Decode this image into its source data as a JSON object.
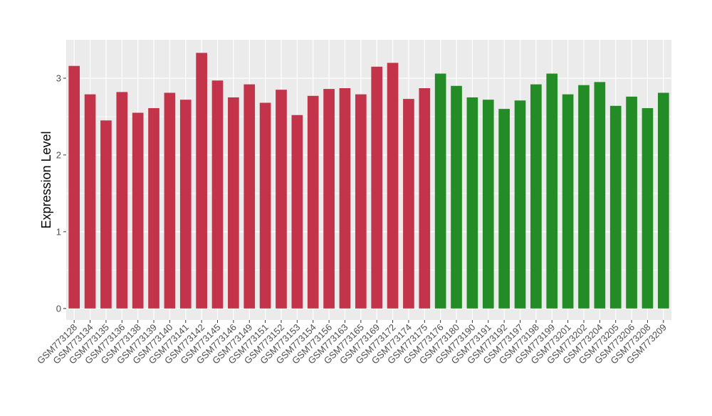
{
  "chart_data": {
    "type": "bar",
    "ylabel": "Expression Level",
    "ylim": [
      -0.15,
      3.5
    ],
    "yticks": [
      0,
      1,
      2,
      3
    ],
    "grid": true,
    "categories": [
      "GSM773128",
      "GSM773134",
      "GSM773135",
      "GSM773136",
      "GSM773138",
      "GSM773139",
      "GSM773140",
      "GSM773141",
      "GSM773142",
      "GSM773145",
      "GSM773146",
      "GSM773149",
      "GSM773151",
      "GSM773152",
      "GSM773153",
      "GSM773154",
      "GSM773156",
      "GSM773163",
      "GSM773165",
      "GSM773169",
      "GSM773172",
      "GSM773174",
      "GSM773175",
      "GSM773176",
      "GSM773180",
      "GSM773190",
      "GSM773191",
      "GSM773192",
      "GSM773197",
      "GSM773198",
      "GSM773199",
      "GSM773201",
      "GSM773202",
      "GSM773204",
      "GSM773205",
      "GSM773206",
      "GSM773208",
      "GSM773209"
    ],
    "values": [
      3.16,
      2.79,
      2.45,
      2.82,
      2.55,
      2.61,
      2.81,
      2.72,
      3.33,
      2.97,
      2.75,
      2.92,
      2.68,
      2.85,
      2.52,
      2.77,
      2.86,
      2.87,
      2.79,
      3.15,
      3.2,
      2.73,
      2.87,
      3.06,
      2.9,
      2.75,
      2.72,
      2.6,
      2.71,
      2.92,
      3.06,
      2.79,
      2.91,
      2.95,
      2.64,
      2.76,
      2.61,
      2.81
    ],
    "groups": [
      0,
      0,
      0,
      0,
      0,
      0,
      0,
      0,
      0,
      0,
      0,
      0,
      0,
      0,
      0,
      0,
      0,
      0,
      0,
      0,
      0,
      0,
      0,
      1,
      1,
      1,
      1,
      1,
      1,
      1,
      1,
      1,
      1,
      1,
      1,
      1,
      1,
      1
    ],
    "colors": [
      "#c3344a",
      "#238c27"
    ],
    "panel_color": "#ebebeb",
    "grid_color": "#ffffff"
  }
}
